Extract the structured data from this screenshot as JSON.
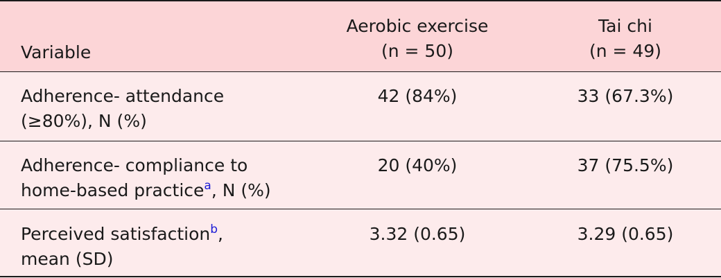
{
  "table": {
    "headers": {
      "variable": "Variable",
      "aerobic": [
        "Aerobic exercise",
        "(n = 50)"
      ],
      "taichi": [
        "Tai chi",
        "(n = 49)"
      ]
    },
    "rows": [
      {
        "variable_lines": [
          "Adherence- attendance",
          "(≥80%), N (%)"
        ],
        "aerobic": "42 (84%)",
        "taichi": "33 (67.3%)"
      },
      {
        "variable_lines": [
          "Adherence- compliance to",
          "home-based practice"
        ],
        "variable_sup": "a",
        "variable_suffix": ", N (%)",
        "aerobic": "20 (40%)",
        "taichi": "37 (75.5%)"
      },
      {
        "variable_lines": [
          "Perceived satisfaction",
          "mean (SD)"
        ],
        "variable_sup": "b",
        "variable_suffix": ",",
        "aerobic": "3.32 (0.65)",
        "taichi": "3.29 (0.65)"
      }
    ]
  }
}
